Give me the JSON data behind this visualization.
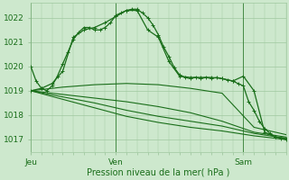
{
  "bg_color": "#cde8cd",
  "grid_color": "#a0c8a0",
  "line_color": "#1a6e1a",
  "ylabel_ticks": [
    1017,
    1018,
    1019,
    1020,
    1021,
    1022
  ],
  "ylim": [
    1016.5,
    1022.6
  ],
  "xlim": [
    0,
    48
  ],
  "xlabel": "Pression niveau de la mer( hPa )",
  "xtick_positions": [
    0,
    16,
    40
  ],
  "xtick_labels": [
    "Jeu",
    "Ven",
    "Sam"
  ],
  "vlines": [
    0,
    16,
    40
  ],
  "lines": [
    {
      "x": [
        0,
        1,
        2,
        3,
        4,
        5,
        6,
        7,
        8,
        9,
        10,
        11,
        12,
        13,
        14,
        15,
        16,
        17,
        18,
        19,
        20,
        21,
        22,
        23,
        24,
        25,
        26,
        27,
        28,
        29,
        30,
        31,
        32,
        33,
        34,
        35,
        36,
        37,
        38,
        39,
        40,
        41,
        42,
        43,
        44,
        45,
        46,
        47,
        48
      ],
      "y": [
        1020.0,
        1019.4,
        1019.1,
        1019.0,
        1019.2,
        1019.6,
        1020.1,
        1020.6,
        1021.1,
        1021.4,
        1021.6,
        1021.6,
        1021.5,
        1021.5,
        1021.6,
        1021.8,
        1022.1,
        1022.2,
        1022.3,
        1022.35,
        1022.35,
        1022.2,
        1022.0,
        1021.7,
        1021.3,
        1020.8,
        1020.4,
        1019.95,
        1019.65,
        1019.55,
        1019.5,
        1019.55,
        1019.5,
        1019.55,
        1019.5,
        1019.55,
        1019.5,
        1019.45,
        1019.4,
        1019.3,
        1019.2,
        1018.55,
        1018.2,
        1017.75,
        1017.45,
        1017.25,
        1017.1,
        1017.05,
        1017.0
      ],
      "marker": true,
      "lw": 0.9
    },
    {
      "x": [
        0,
        2,
        4,
        6,
        8,
        10,
        12,
        14,
        16,
        18,
        20,
        22,
        24,
        26,
        28,
        30,
        32,
        34,
        36,
        38,
        40,
        42,
        44,
        46,
        48
      ],
      "y": [
        1019.0,
        1019.1,
        1019.3,
        1019.8,
        1021.2,
        1021.5,
        1021.6,
        1021.8,
        1022.05,
        1022.3,
        1022.3,
        1021.5,
        1021.2,
        1020.2,
        1019.6,
        1019.55,
        1019.55,
        1019.55,
        1019.5,
        1019.4,
        1019.6,
        1019.0,
        1017.3,
        1017.1,
        1017.05
      ],
      "marker": true,
      "lw": 0.9
    },
    {
      "x": [
        0,
        6,
        12,
        18,
        24,
        30,
        36,
        42,
        48
      ],
      "y": [
        1019.0,
        1019.15,
        1019.25,
        1019.3,
        1019.25,
        1019.1,
        1018.9,
        1017.5,
        1017.2
      ],
      "marker": false,
      "lw": 0.8
    },
    {
      "x": [
        0,
        6,
        12,
        18,
        24,
        30,
        36,
        42,
        48
      ],
      "y": [
        1019.0,
        1018.85,
        1018.7,
        1018.55,
        1018.35,
        1018.1,
        1017.75,
        1017.3,
        1017.1
      ],
      "marker": false,
      "lw": 0.8
    },
    {
      "x": [
        0,
        6,
        12,
        18,
        24,
        30,
        36,
        42,
        48
      ],
      "y": [
        1019.0,
        1018.75,
        1018.5,
        1018.2,
        1017.95,
        1017.75,
        1017.55,
        1017.25,
        1017.05
      ],
      "marker": false,
      "lw": 0.8
    },
    {
      "x": [
        0,
        6,
        12,
        18,
        24,
        30,
        36,
        42,
        48
      ],
      "y": [
        1019.0,
        1018.65,
        1018.3,
        1017.95,
        1017.7,
        1017.5,
        1017.35,
        1017.15,
        1017.0
      ],
      "marker": false,
      "lw": 0.8
    }
  ]
}
